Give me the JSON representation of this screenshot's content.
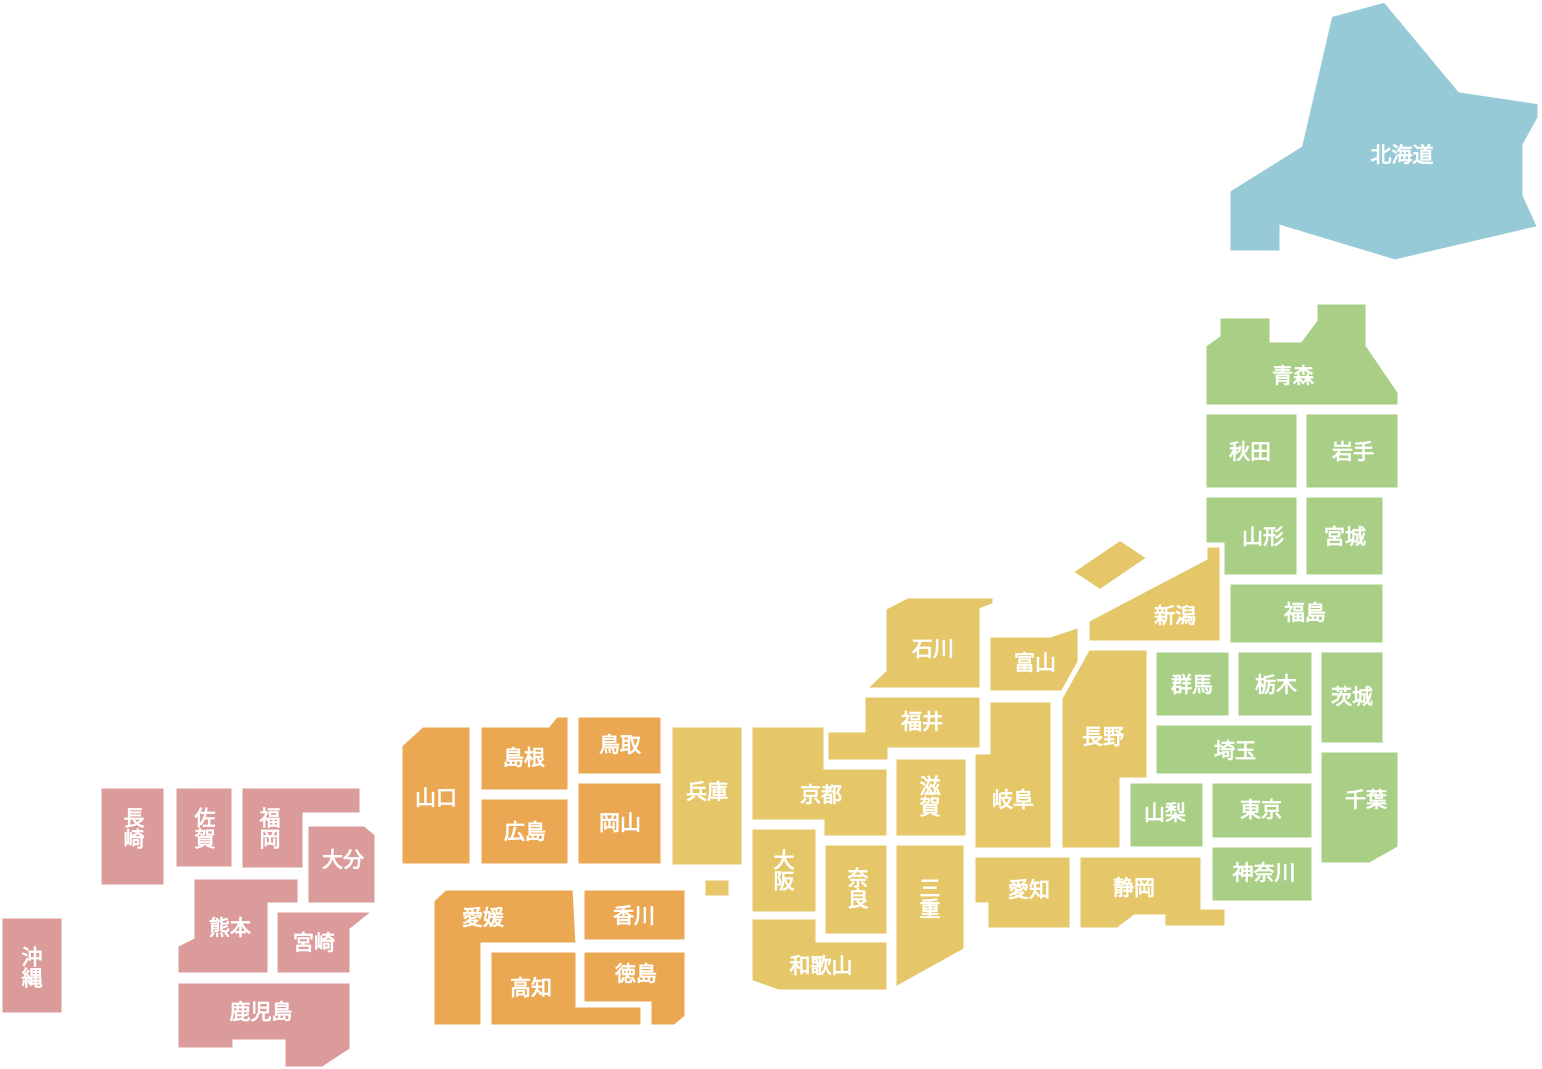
{
  "prefectures": [
    "北海道",
    "青森",
    "秋田",
    "岩手",
    "山形",
    "宮城",
    "福島",
    "群馬",
    "栃木",
    "茨城",
    "埼玉",
    "千葉",
    "山梨",
    "東京",
    "神奈川",
    "新潟",
    "富山",
    "石川",
    "福井",
    "長野",
    "岐阜",
    "滋賀",
    "京都",
    "兵庫",
    "大阪",
    "奈良",
    "三重",
    "和歌山",
    "愛知",
    "静岡",
    "鳥取",
    "島根",
    "岡山",
    "広島",
    "山口",
    "愛媛",
    "香川",
    "高知",
    "徳島",
    "長崎",
    "佐賀",
    "福岡",
    "大分",
    "熊本",
    "宮崎",
    "鹿児島",
    "沖縄"
  ]
}
